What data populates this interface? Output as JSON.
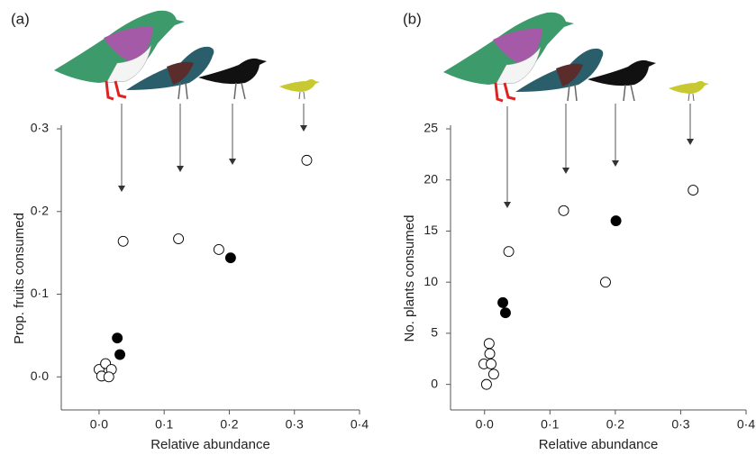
{
  "chart_data": [
    {
      "type": "scatter",
      "panel_label": "(a)",
      "x_label": "Relative abundance",
      "y_label": "Prop. fruits consumed",
      "xlim": [
        -0.058,
        0.4
      ],
      "xticks": [
        {
          "value": 0,
          "label": "0·0"
        },
        {
          "value": 0.1,
          "label": "0·1"
        },
        {
          "value": 0.2,
          "label": "0·2"
        },
        {
          "value": 0.3,
          "label": "0·3"
        },
        {
          "value": 0.4,
          "label": "0·4"
        }
      ],
      "ylim": [
        -0.04,
        0.3
      ],
      "yticks": [
        {
          "value": 0,
          "label": "0·0"
        },
        {
          "value": 0.1,
          "label": "0·1"
        },
        {
          "value": 0.2,
          "label": "0·2"
        },
        {
          "value": 0.3,
          "label": "0·3"
        }
      ],
      "series": [
        {
          "color": "#000000",
          "filled": false,
          "x": [
            0.037,
            0.122,
            0.184,
            0.319,
            0.0,
            0.01,
            0.019,
            0.004,
            0.015
          ],
          "values": [
            0.164,
            0.167,
            0.154,
            0.262,
            0.009,
            0.016,
            0.009,
            0.001,
            0.0
          ]
        },
        {
          "color": "#000000",
          "filled": true,
          "x": [
            0.028,
            0.032,
            0.202
          ],
          "values": [
            0.047,
            0.027,
            0.144
          ]
        }
      ]
    },
    {
      "type": "scatter",
      "panel_label": "(b)",
      "x_label": "Relative abundance",
      "y_label": "No. plants consumed",
      "xlim": [
        -0.052,
        0.4
      ],
      "xticks": [
        {
          "value": 0,
          "label": "0·0"
        },
        {
          "value": 0.1,
          "label": "0·1"
        },
        {
          "value": 0.2,
          "label": "0·2"
        },
        {
          "value": 0.3,
          "label": "0·3"
        },
        {
          "value": 0.4,
          "label": "0·4"
        }
      ],
      "ylim": [
        -2.5,
        25
      ],
      "yticks": [
        0,
        5,
        10,
        15,
        20,
        25
      ],
      "series": [
        {
          "color": "#000000",
          "filled": false,
          "x": [
            0.037,
            0.121,
            0.185,
            0.319,
            0.007,
            0.008,
            -0.001,
            0.01,
            0.014,
            0.003
          ],
          "values": [
            13,
            17,
            10,
            19,
            4,
            3,
            2,
            2,
            1,
            0
          ]
        },
        {
          "color": "#000000",
          "filled": true,
          "x": [
            0.028,
            0.032,
            0.201
          ],
          "values": [
            8,
            7,
            16
          ]
        }
      ]
    }
  ]
}
